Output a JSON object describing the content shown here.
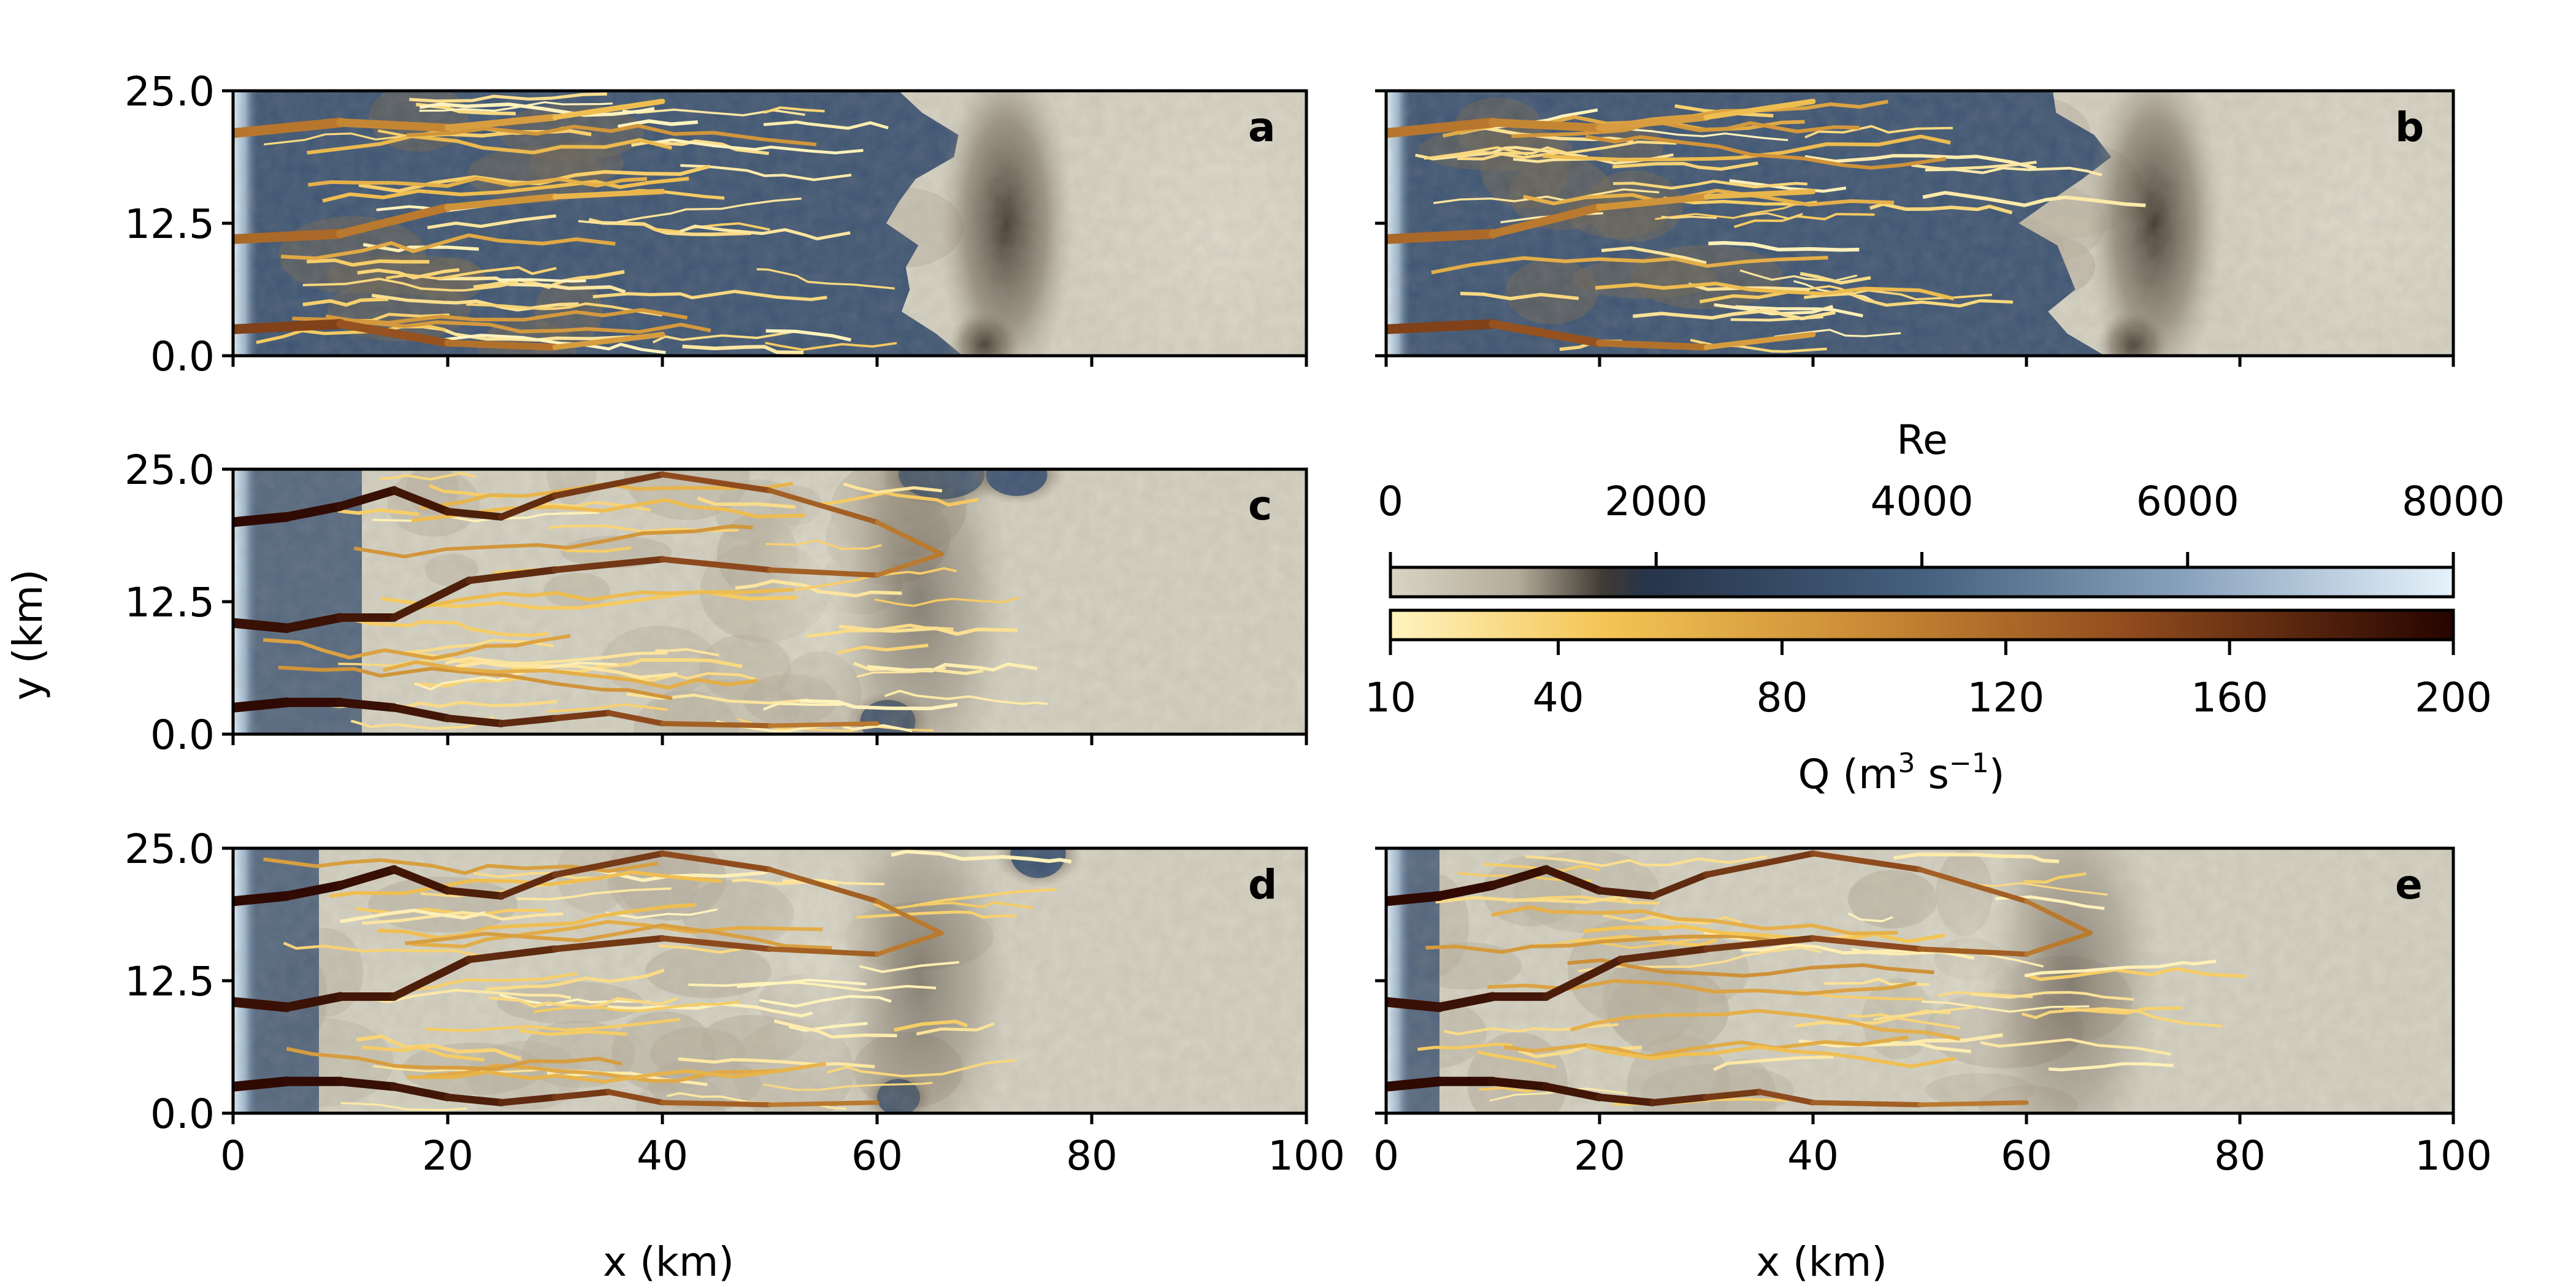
{
  "figure": {
    "panels": [
      {
        "id": "a",
        "label": "a",
        "blue_extent_km": 68,
        "seed": 11,
        "show_ylabels": true
      },
      {
        "id": "b",
        "label": "b",
        "blue_extent_km": 68,
        "seed": 23,
        "show_ylabels": false
      },
      {
        "id": "c",
        "label": "c",
        "blue_extent_km": 12,
        "seed": 37,
        "show_ylabels": true
      },
      {
        "id": "d",
        "label": "d",
        "blue_extent_km": 8,
        "seed": 41,
        "show_ylabels": true
      },
      {
        "id": "e",
        "label": "e",
        "blue_extent_km": 5,
        "seed": 53,
        "show_ylabels": false
      }
    ],
    "ylabel": "y (km)",
    "xlabel": "x (km)",
    "colorbar_re": {
      "label": "Re",
      "ticks": [
        "0",
        "2000",
        "4000",
        "6000",
        "8000"
      ],
      "range": [
        0,
        8000
      ]
    },
    "colorbar_q": {
      "label_prefix": "Q (m",
      "label_sup1": "3",
      "label_mid": " s",
      "label_sup2": "−1",
      "label_suffix": ")",
      "ticks": [
        "10",
        "40",
        "80",
        "120",
        "160",
        "200"
      ]
    },
    "colors": {
      "bed": "#d6d3c3",
      "blue": "#3e5573",
      "edge_light": "#dcedf7",
      "q_low": "#fff0b0",
      "q_mid": "#c2872f",
      "q_high": "#2b0600"
    }
  },
  "chart_data": [
    {
      "type": "heatmap",
      "panel": "a",
      "x_range": [
        0,
        100
      ],
      "y_range": [
        0,
        25
      ],
      "xticks": [
        0,
        20,
        40,
        60,
        80,
        100
      ],
      "yticks": [
        0.0,
        12.5,
        25.0
      ],
      "ytick_labels": [
        "0.0",
        "12.5",
        "25.0"
      ],
      "field": "Re",
      "overlay": "channel discharge Q",
      "main_channels": [
        {
          "x": [
            0,
            10,
            20,
            30,
            40
          ],
          "y": [
            2.5,
            3.0,
            1.2,
            0.8,
            2.0
          ],
          "q": 150
        },
        {
          "x": [
            0,
            10,
            20,
            30,
            40
          ],
          "y": [
            11.0,
            11.5,
            14.0,
            15.0,
            15.5
          ],
          "q": 120
        },
        {
          "x": [
            0,
            10,
            20,
            30,
            40
          ],
          "y": [
            21.0,
            22.0,
            21.5,
            22.5,
            24.0
          ],
          "q": 110
        }
      ]
    },
    {
      "type": "heatmap",
      "panel": "b",
      "x_range": [
        0,
        100
      ],
      "y_range": [
        0,
        25
      ],
      "xticks": [
        0,
        20,
        40,
        60,
        80,
        100
      ],
      "yticks": [
        0.0,
        12.5,
        25.0
      ],
      "field": "Re",
      "overlay": "channel discharge Q",
      "main_channels": [
        {
          "x": [
            0,
            10,
            20,
            30,
            40
          ],
          "y": [
            2.5,
            3.0,
            1.2,
            0.8,
            2.0
          ],
          "q": 150
        },
        {
          "x": [
            0,
            10,
            20,
            30,
            40
          ],
          "y": [
            11.0,
            11.5,
            14.0,
            15.0,
            15.5
          ],
          "q": 120
        },
        {
          "x": [
            0,
            10,
            20,
            30,
            40
          ],
          "y": [
            21.0,
            22.0,
            21.5,
            22.5,
            24.0
          ],
          "q": 110
        }
      ]
    },
    {
      "type": "heatmap",
      "panel": "c",
      "x_range": [
        0,
        100
      ],
      "y_range": [
        0,
        25
      ],
      "xticks": [
        0,
        20,
        40,
        60,
        80,
        100
      ],
      "yticks": [
        0.0,
        12.5,
        25.0
      ],
      "ytick_labels": [
        "0.0",
        "12.5",
        "25.0"
      ],
      "field": "Re",
      "overlay": "channel discharge Q",
      "main_channels": [
        {
          "x": [
            0,
            5,
            10,
            15,
            20,
            25,
            30,
            35,
            40,
            50,
            60
          ],
          "y": [
            2.5,
            3.0,
            3.0,
            2.5,
            1.5,
            1.0,
            1.5,
            2.0,
            1.0,
            0.8,
            1.0
          ],
          "q": 195
        },
        {
          "x": [
            0,
            5,
            10,
            15,
            22,
            30,
            40,
            50,
            60,
            66
          ],
          "y": [
            10.5,
            10.0,
            11.0,
            11.0,
            14.5,
            15.5,
            16.5,
            15.5,
            15.0,
            17.0
          ],
          "q": 190
        },
        {
          "x": [
            0,
            5,
            10,
            15,
            20,
            25,
            30,
            40,
            50,
            60,
            66
          ],
          "y": [
            20.0,
            20.5,
            21.5,
            23.0,
            21.0,
            20.5,
            22.5,
            24.5,
            23.0,
            20.0,
            17.0
          ],
          "q": 195
        }
      ]
    },
    {
      "type": "heatmap",
      "panel": "d",
      "x_range": [
        0,
        100
      ],
      "y_range": [
        0,
        25
      ],
      "xticks": [
        0,
        20,
        40,
        60,
        80,
        100
      ],
      "yticks": [
        0.0,
        12.5,
        25.0
      ],
      "ytick_labels": [
        "0.0",
        "12.5",
        "25.0"
      ],
      "xtick_labels": [
        "0",
        "20",
        "40",
        "60",
        "80",
        "100"
      ],
      "field": "Re",
      "overlay": "channel discharge Q",
      "main_channels": [
        {
          "x": [
            0,
            5,
            10,
            15,
            20,
            25,
            30,
            35,
            40,
            50,
            60
          ],
          "y": [
            2.5,
            3.0,
            3.0,
            2.5,
            1.5,
            1.0,
            1.5,
            2.0,
            1.0,
            0.8,
            1.0
          ],
          "q": 195
        },
        {
          "x": [
            0,
            5,
            10,
            15,
            22,
            30,
            40,
            50,
            60,
            66
          ],
          "y": [
            10.5,
            10.0,
            11.0,
            11.0,
            14.5,
            15.5,
            16.5,
            15.5,
            15.0,
            17.0
          ],
          "q": 190
        },
        {
          "x": [
            0,
            5,
            10,
            15,
            20,
            25,
            30,
            40,
            50,
            60,
            66
          ],
          "y": [
            20.0,
            20.5,
            21.5,
            23.0,
            21.0,
            20.5,
            22.5,
            24.5,
            23.0,
            20.0,
            17.0
          ],
          "q": 195
        }
      ]
    },
    {
      "type": "heatmap",
      "panel": "e",
      "x_range": [
        0,
        100
      ],
      "y_range": [
        0,
        25
      ],
      "xticks": [
        0,
        20,
        40,
        60,
        80,
        100
      ],
      "yticks": [
        0.0,
        12.5,
        25.0
      ],
      "xtick_labels": [
        "0",
        "20",
        "40",
        "60",
        "80",
        "100"
      ],
      "field": "Re",
      "overlay": "channel discharge Q",
      "main_channels": [
        {
          "x": [
            0,
            5,
            10,
            15,
            20,
            25,
            30,
            35,
            40,
            50,
            60
          ],
          "y": [
            2.5,
            3.0,
            3.0,
            2.5,
            1.5,
            1.0,
            1.5,
            2.0,
            1.0,
            0.8,
            1.0
          ],
          "q": 195
        },
        {
          "x": [
            0,
            5,
            10,
            15,
            22,
            30,
            40,
            50,
            60,
            66
          ],
          "y": [
            10.5,
            10.0,
            11.0,
            11.0,
            14.5,
            15.5,
            16.5,
            15.5,
            15.0,
            17.0
          ],
          "q": 190
        },
        {
          "x": [
            0,
            5,
            10,
            15,
            20,
            25,
            30,
            40,
            50,
            60,
            66
          ],
          "y": [
            20.0,
            20.5,
            21.5,
            23.0,
            21.0,
            20.5,
            22.5,
            24.5,
            23.0,
            20.0,
            17.0
          ],
          "q": 195
        }
      ]
    }
  ]
}
